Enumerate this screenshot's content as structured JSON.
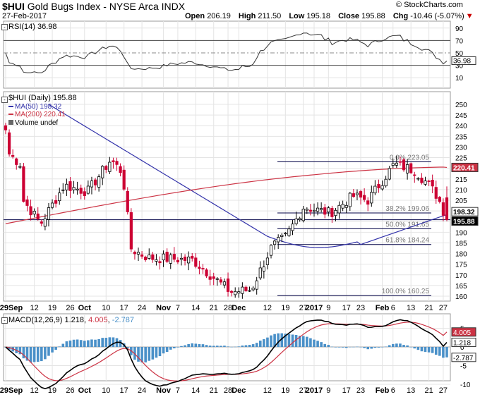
{
  "header": {
    "symbol": "$HUI",
    "name": "Gold Bugs Index - NYSE Arca INDX",
    "date": "27-Feb-2017",
    "open_label": "Open",
    "open": "206.19",
    "high_label": "High",
    "high": "211.50",
    "low_label": "Low",
    "low": "195.18",
    "close_label": "Close",
    "close": "195.88",
    "chg_label": "Chg",
    "chg": "-10.46 (-5.07%)",
    "chg_arrow": "▼",
    "brand": "© StockCharts.com"
  },
  "colors": {
    "up": "#000000",
    "down": "#cc0033",
    "ma50": "#3333aa",
    "ma200": "#cc3344",
    "macd_line": "#000000",
    "signal_line": "#cc3344",
    "histogram": "#4a90c8",
    "grid": "#e4e4e4"
  },
  "rsi_panel": {
    "label": "RSI(14) 36.98",
    "value_tag": "36.98",
    "ticks": [
      "90",
      "70",
      "50",
      "30",
      "10"
    ]
  },
  "price_panel": {
    "legend": [
      {
        "text": "$HUI (Daily) 195.88",
        "kind": "price"
      },
      {
        "text": "MA(50) 198.32",
        "kind": "ma50"
      },
      {
        "text": "MA(200) 220.41",
        "kind": "ma200"
      },
      {
        "text": "Volume undef",
        "kind": "volume"
      }
    ],
    "ticks": [
      "250",
      "245",
      "240",
      "235",
      "230",
      "225",
      "220",
      "215",
      "210",
      "205",
      "200",
      "195",
      "190",
      "185",
      "180",
      "175",
      "170",
      "165",
      "160"
    ],
    "tags": {
      "ma200": "220.41",
      "ma50": "198.32",
      "close": "195.88"
    },
    "fib_levels": [
      {
        "label": "0.0% 223.05",
        "price": 223.05
      },
      {
        "label": "38.2% 199.06",
        "price": 199.06
      },
      {
        "label": "50.0% 191.65",
        "price": 191.65
      },
      {
        "label": "61.8% 184.24",
        "price": 184.24
      },
      {
        "label": "100.0% 160.25",
        "price": 160.25
      }
    ]
  },
  "macd_panel": {
    "label": "MACD(12,26,9) 1.218, 4.005, -2.787",
    "label_parts": [
      "MACD(12,26,9) 1.218, ",
      "4.005",
      ", ",
      "-2.787"
    ],
    "tags": {
      "signal": "4.005",
      "macd": "1.218",
      "hist": "-2.787"
    },
    "ticks": [
      "5",
      "0",
      "-5",
      "-10"
    ]
  },
  "x_axis": {
    "labels": [
      {
        "text": "29Sep",
        "idx": 0,
        "bold": true
      },
      {
        "text": "12",
        "idx": 8,
        "bold": false
      },
      {
        "text": "19",
        "idx": 13,
        "bold": false
      },
      {
        "text": "26",
        "idx": 18,
        "bold": false
      },
      {
        "text": "Oct",
        "idx": 22,
        "bold": true
      },
      {
        "text": "10",
        "idx": 28,
        "bold": false
      },
      {
        "text": "17",
        "idx": 33,
        "bold": false
      },
      {
        "text": "24",
        "idx": 38,
        "bold": false
      },
      {
        "text": "Nov",
        "idx": 44,
        "bold": true
      },
      {
        "text": "7",
        "idx": 48,
        "bold": false
      },
      {
        "text": "14",
        "idx": 53,
        "bold": false
      },
      {
        "text": "21",
        "idx": 58,
        "bold": false
      },
      {
        "text": "28",
        "idx": 62,
        "bold": false
      },
      {
        "text": "Dec",
        "idx": 65,
        "bold": true
      },
      {
        "text": "12",
        "idx": 73,
        "bold": false
      },
      {
        "text": "19",
        "idx": 78,
        "bold": false
      },
      {
        "text": "27",
        "idx": 83,
        "bold": false
      },
      {
        "text": "2017",
        "idx": 86,
        "bold": true
      },
      {
        "text": "9",
        "idx": 90,
        "bold": false
      },
      {
        "text": "17",
        "idx": 95,
        "bold": false
      },
      {
        "text": "23",
        "idx": 99,
        "bold": false
      },
      {
        "text": "Feb",
        "idx": 105,
        "bold": true
      },
      {
        "text": "6",
        "idx": 108,
        "bold": false
      },
      {
        "text": "13",
        "idx": 113,
        "bold": false
      },
      {
        "text": "21",
        "idx": 118,
        "bold": false
      },
      {
        "text": "27",
        "idx": 122,
        "bold": false
      }
    ]
  },
  "chart_data": {
    "type": "candlestick",
    "title": "$HUI Gold Bugs Index - NYSE Arca INDX",
    "x_range": [
      "29-Sep-2016",
      "27-Feb-2017"
    ],
    "y_range": [
      158,
      252
    ],
    "rsi_range": [
      0,
      100
    ],
    "macd_range": [
      -12,
      12
    ],
    "key_points": [
      {
        "date": "29-Sep-2016",
        "close": 238
      },
      {
        "date": "30-Sep-2016",
        "close": 227
      },
      {
        "date": "04-Oct-2016",
        "close": 222
      },
      {
        "date": "05-Oct-2016",
        "close": 205
      },
      {
        "date": "11-Oct-2016",
        "close": 194
      },
      {
        "date": "19-Oct-2016",
        "close": 212
      },
      {
        "date": "27-Oct-2016",
        "close": 209
      },
      {
        "date": "04-Nov-2016",
        "close": 224
      },
      {
        "date": "08-Nov-2016",
        "close": 218
      },
      {
        "date": "11-Nov-2016",
        "close": 182
      },
      {
        "date": "17-Nov-2016",
        "close": 178
      },
      {
        "date": "02-Dec-2016",
        "close": 177
      },
      {
        "date": "15-Dec-2016",
        "close": 162
      },
      {
        "date": "22-Dec-2016",
        "close": 163
      },
      {
        "date": "29-Dec-2016",
        "close": 183
      },
      {
        "date": "03-Jan-2017",
        "close": 188
      },
      {
        "date": "09-Jan-2017",
        "close": 202
      },
      {
        "date": "18-Jan-2017",
        "close": 199
      },
      {
        "date": "26-Jan-2017",
        "close": 207
      },
      {
        "date": "31-Jan-2017",
        "close": 205
      },
      {
        "date": "09-Feb-2017",
        "close": 222
      },
      {
        "date": "16-Feb-2017",
        "close": 219
      },
      {
        "date": "21-Feb-2017",
        "close": 212
      },
      {
        "date": "24-Feb-2017",
        "close": 206.34
      },
      {
        "date": "27-Feb-2017",
        "close": 195.88
      }
    ],
    "ma50_last": 198.32,
    "ma200_last": 220.41,
    "rsi_last": 36.98,
    "macd_last": {
      "macd": 1.218,
      "signal": 4.005,
      "histogram": -2.787
    }
  }
}
